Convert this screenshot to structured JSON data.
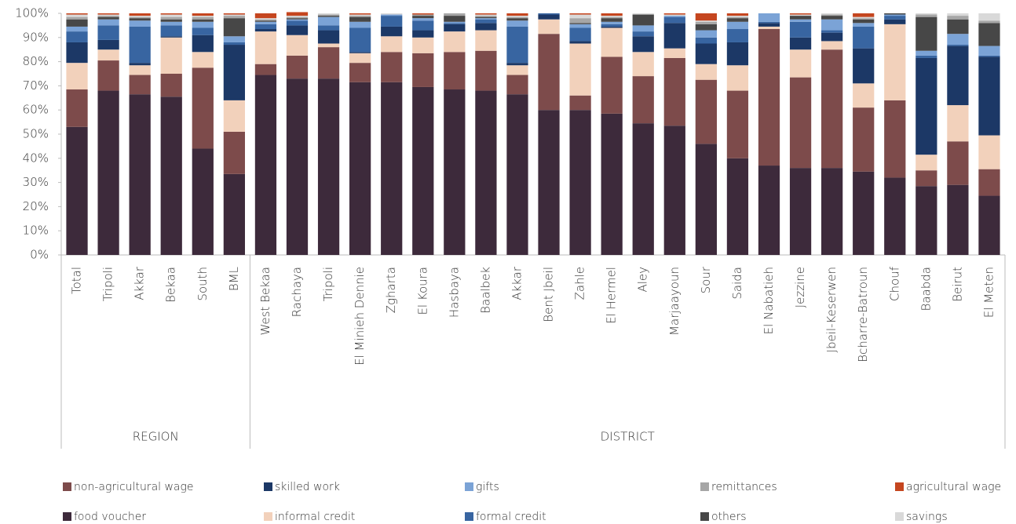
{
  "chart_data": {
    "type": "stacked_bar",
    "groups": [
      {
        "label": "REGION",
        "categories": [
          "Total",
          "Tripoli",
          "Akkar",
          "Bekaa",
          "South",
          "BML"
        ]
      },
      {
        "label": "DISTRICT",
        "categories": [
          "West Bekaa",
          "Rachaya",
          "Tripoli",
          "El Minieh Dennie",
          "Zgharta",
          "El Koura",
          "Hasbaya",
          "Baalbek",
          "Akkar",
          "Bent Jbeil",
          "Zahle",
          "El Hermel",
          "Aley",
          "Marjaayoun",
          "Sour",
          "Saida",
          "El Nabatieh",
          "Jezzine",
          "Jbeil-Keserwen",
          "Bcharre-Batroun",
          "Chouf",
          "Baabda",
          "Beirut",
          "El Meten"
        ]
      }
    ],
    "series": [
      {
        "name": "food voucher",
        "color": "#3d2a3b",
        "values": [
          53,
          68,
          66.5,
          65.5,
          44,
          33.5,
          74.5,
          73,
          73,
          71.5,
          71.5,
          69.5,
          68.5,
          68,
          66.5,
          60,
          60,
          58.5,
          54.5,
          53.5,
          46,
          40,
          37,
          36,
          36,
          34.5,
          32,
          28.5,
          29,
          24.5
        ]
      },
      {
        "name": "non-agricultural wage",
        "color": "#7d4b4b",
        "values": [
          15.5,
          12.5,
          8,
          9.5,
          33.5,
          17.5,
          4.5,
          9.5,
          13,
          8,
          12.5,
          14,
          15.5,
          16.5,
          8,
          31.5,
          6,
          23.5,
          19.5,
          28,
          26.5,
          28,
          56.5,
          37.5,
          49,
          26.5,
          32,
          6.5,
          18,
          11
        ]
      },
      {
        "name": "informal credit",
        "color": "#f2d1bb",
        "values": [
          11,
          4.5,
          4,
          15,
          6.5,
          13,
          13.5,
          8.5,
          1.5,
          4,
          6.5,
          6.5,
          8.5,
          8.5,
          4,
          6,
          21.5,
          12,
          10,
          4,
          6.5,
          10.5,
          1,
          11.5,
          3.5,
          10,
          31.5,
          6.5,
          15,
          14
        ]
      },
      {
        "name": "skilled work",
        "color": "#1c3866",
        "values": [
          8.5,
          4,
          1,
          0.5,
          7,
          23,
          1,
          4,
          5.5,
          0.5,
          4,
          3,
          3,
          3,
          1,
          2,
          1,
          0.5,
          6.5,
          10.5,
          8.5,
          9.5,
          1.5,
          5,
          3.5,
          14.5,
          2,
          40,
          24.5,
          32.5
        ]
      },
      {
        "name": "formal credit",
        "color": "#3865a1",
        "values": [
          4.5,
          6,
          15,
          4.5,
          3,
          1,
          2,
          2,
          2,
          10,
          4.5,
          4,
          0.5,
          1.5,
          15,
          0.5,
          5.5,
          1,
          2,
          2.5,
          2.5,
          5.5,
          0.5,
          6.5,
          1,
          9,
          1.5,
          1,
          0.5,
          0.5
        ]
      },
      {
        "name": "gifts",
        "color": "#7ba3d6",
        "values": [
          2,
          2.5,
          2.5,
          1.5,
          2.5,
          2.5,
          1,
          0.5,
          3.5,
          2.5,
          0.5,
          1,
          0.5,
          0.5,
          2.5,
          0,
          1.5,
          1,
          2.5,
          0.5,
          3,
          3,
          3.5,
          1,
          4.5,
          1.5,
          0.5,
          2,
          4.5,
          4
        ]
      },
      {
        "name": "others",
        "color": "#474747",
        "values": [
          3,
          1,
          1,
          1,
          1,
          7.5,
          0.5,
          0.5,
          0.5,
          2,
          0,
          1,
          2.5,
          0.5,
          1,
          0,
          0.5,
          1.5,
          4.5,
          0,
          2.5,
          1.5,
          0,
          1.5,
          1.5,
          1.5,
          0.5,
          14,
          6,
          9.5
        ]
      },
      {
        "name": "remittances",
        "color": "#a6a6a6",
        "values": [
          1,
          0.5,
          0.5,
          1,
          1,
          1,
          0.5,
          0.5,
          0.5,
          0.5,
          0,
          0.5,
          1,
          0.5,
          0.5,
          0,
          2,
          0.5,
          0,
          0,
          1,
          0.5,
          0,
          0,
          0.5,
          0.5,
          0,
          1,
          1.5,
          1
        ]
      },
      {
        "name": "savings",
        "color": "#d9d9d9",
        "values": [
          1,
          0.5,
          0.5,
          1,
          0.5,
          0.5,
          0.5,
          0.5,
          0.5,
          0.5,
          0.5,
          0,
          0,
          0.5,
          0.5,
          0,
          1.5,
          0.5,
          0.5,
          0.5,
          0.5,
          0.5,
          0,
          0.5,
          0.5,
          0.5,
          0,
          0.5,
          1,
          3
        ]
      },
      {
        "name": "agricultural wage",
        "color": "#c5461f",
        "values": [
          0.5,
          0.5,
          1,
          0.5,
          1,
          0.5,
          2,
          1.5,
          0,
          0.5,
          0,
          0.5,
          0,
          0.5,
          1,
          0,
          0.5,
          1,
          0,
          0.5,
          3,
          1,
          0,
          0.5,
          0,
          1.5,
          0,
          0,
          0,
          0
        ]
      }
    ],
    "ylim": [
      0,
      100
    ],
    "yticks": [
      {
        "value": 0,
        "label": "0%"
      },
      {
        "value": 10,
        "label": "10%"
      },
      {
        "value": 20,
        "label": "20%"
      },
      {
        "value": 30,
        "label": "30%"
      },
      {
        "value": 40,
        "label": "40%"
      },
      {
        "value": 50,
        "label": "50%"
      },
      {
        "value": 60,
        "label": "60%"
      },
      {
        "value": 70,
        "label": "70%"
      },
      {
        "value": 80,
        "label": "80%"
      },
      {
        "value": 90,
        "label": "90%"
      },
      {
        "value": 100,
        "label": "100%"
      }
    ],
    "legend": "bottom"
  }
}
